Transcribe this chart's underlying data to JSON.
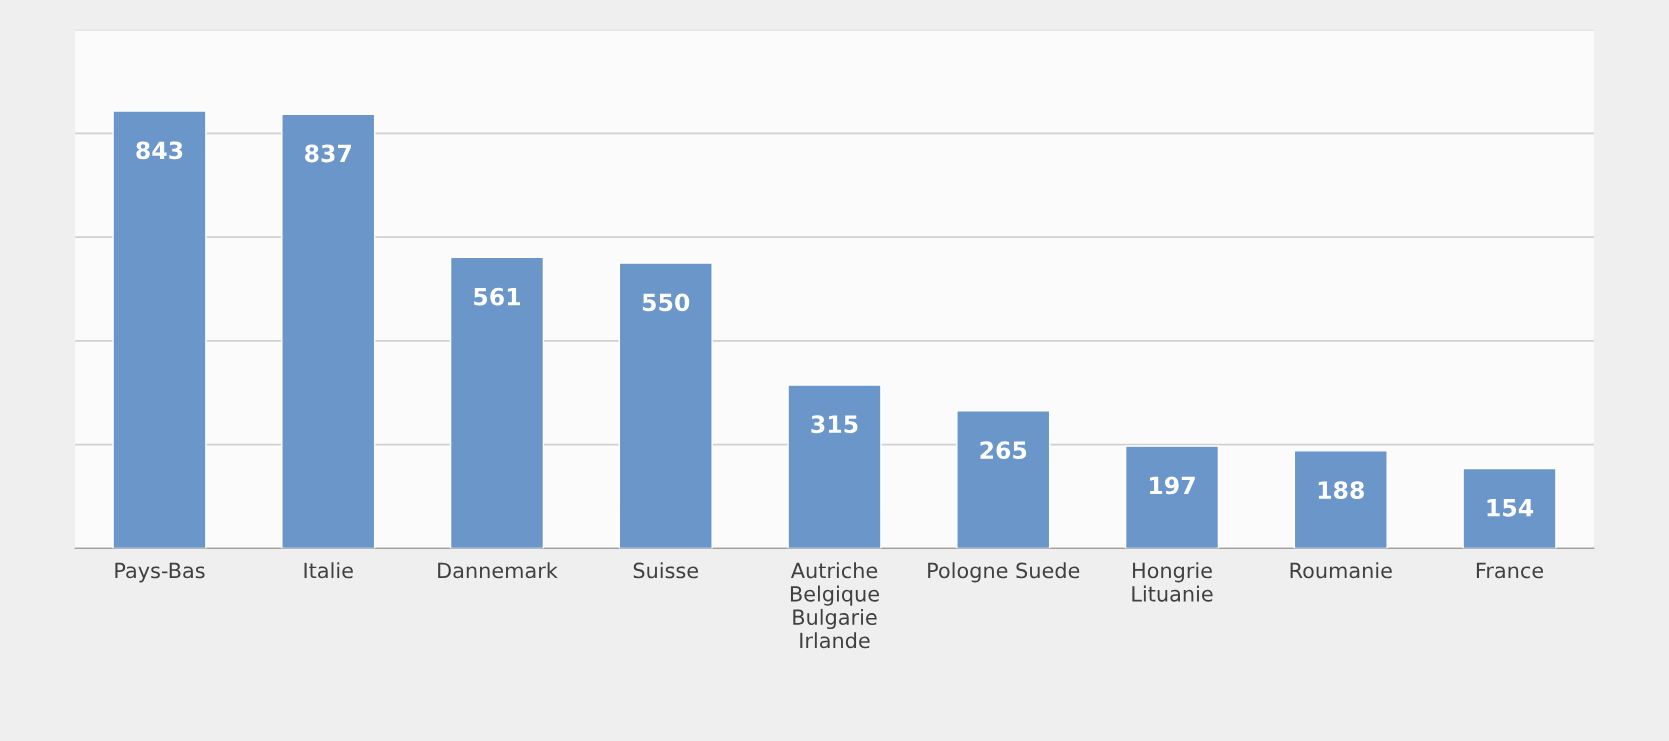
{
  "chart_data": {
    "type": "bar",
    "categories": [
      "Pays-Bas",
      "Italie",
      "Dannemark",
      "Suisse",
      "Autriche\nBelgique\nBulgarie\nIrlande",
      "Pologne Suede",
      "Hongrie\nLituanie",
      "Roumanie",
      "France"
    ],
    "values": [
      843,
      837,
      561,
      550,
      315,
      265,
      197,
      188,
      154
    ],
    "color": "#6a96c9",
    "ylim": [
      0,
      1000
    ],
    "yticks": [
      {
        "value": 0,
        "label": null
      },
      {
        "value": 200,
        "label": null
      },
      {
        "value": 400,
        "label": null
      },
      {
        "value": 600,
        "label": null
      },
      {
        "value": 800,
        "label": null
      },
      {
        "value": 1000,
        "label": null
      }
    ],
    "tick_labels": "x",
    "grid": "y",
    "data_labels": true
  }
}
